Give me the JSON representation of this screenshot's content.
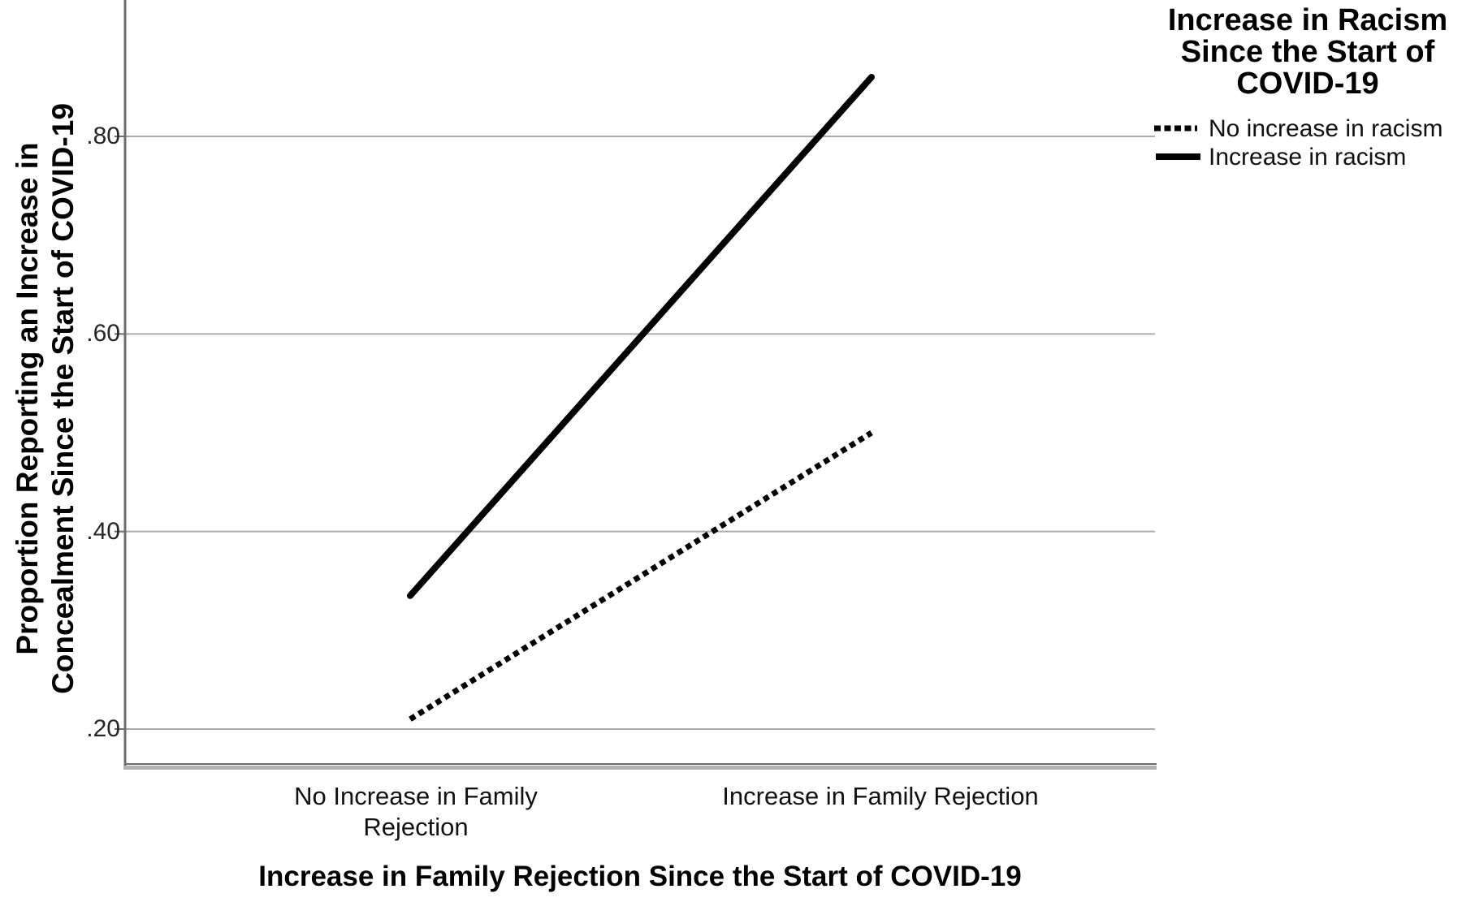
{
  "chart_data": {
    "type": "line",
    "title": "",
    "categories": [
      "No Increase in Family Rejection",
      "Increase in Family Rejection"
    ],
    "series": [
      {
        "name": "No increase in racism",
        "style": "dotted",
        "color": "#000000",
        "values": [
          0.21,
          0.5
        ]
      },
      {
        "name": "Increase in racism",
        "style": "solid",
        "color": "#000000",
        "values": [
          0.335,
          0.86
        ]
      }
    ],
    "xlabel": "Increase in Family Rejection Since the Start of COVID-19",
    "ylabel": "Proportion Reporting an Increase in Concealment Since the Start of COVID-19",
    "ylim": [
      0.16,
      0.94
    ],
    "yticks": [
      {
        "value": 0.2,
        "label": ".20"
      },
      {
        "value": 0.4,
        "label": ".40"
      },
      {
        "value": 0.6,
        "label": ".60"
      },
      {
        "value": 0.8,
        "label": ".80"
      }
    ],
    "grid": "horizontal",
    "legend_title": "Increase in Racism Since the Start of COVID-19",
    "legend_position": "top-right-outside"
  },
  "display": {
    "ylabel_wrapped": "Proportion Reporting an Increase in\nConcealment Since the Start of COVID-19",
    "xlabel": "Increase in Family Rejection Since the Start of COVID-19",
    "cat_labels": [
      "No Increase in Family\nRejection",
      "Increase in Family Rejection"
    ],
    "legend_title_wrapped": "Increase in Racism\nSince the Start of\nCOVID-19",
    "legend_items": [
      {
        "label": "No increase in racism",
        "style": "dotted"
      },
      {
        "label": "Increase in racism",
        "style": "solid"
      }
    ],
    "colors": {
      "line": "#000000",
      "grid": "#ababab",
      "axis": "#6e6e6e",
      "border": "#b3b3b3",
      "text": "#111111"
    }
  }
}
